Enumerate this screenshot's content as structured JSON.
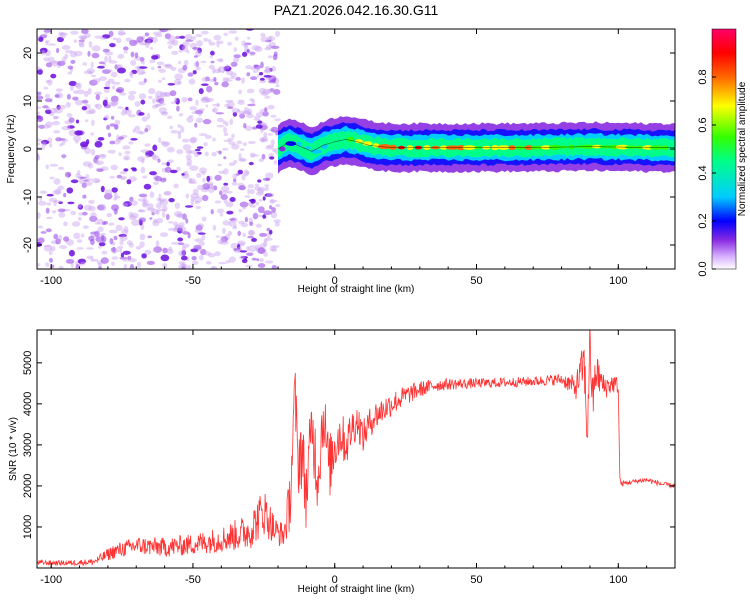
{
  "title": "PAZ1.2026.042.16.30.G11",
  "chart_data": [
    {
      "type": "heatmap",
      "name": "spectrogram",
      "xlabel": "Height of straight line (km)",
      "ylabel": "Frequency (Hz)",
      "xlim": [
        -105,
        120
      ],
      "ylim": [
        -25,
        25
      ],
      "xticks": [
        -100,
        -50,
        0,
        50,
        100
      ],
      "yticks": [
        -20,
        -10,
        0,
        10,
        20
      ],
      "noise_region_x": [
        -105,
        -20
      ],
      "signal_track": {
        "x": [
          -20,
          -16,
          -12,
          -8,
          -4,
          0,
          4,
          8,
          12,
          16,
          20,
          30,
          40,
          50,
          60,
          70,
          80,
          90,
          100,
          110,
          120
        ],
        "y": [
          0,
          1.5,
          0.5,
          -0.5,
          0.8,
          1.5,
          2,
          1.5,
          0.8,
          0.5,
          0.3,
          0.3,
          0.3,
          0.3,
          0.3,
          0.3,
          0.4,
          0.5,
          0.4,
          0.3,
          0.3
        ],
        "amplitude": [
          0.3,
          0.4,
          0.5,
          0.5,
          0.55,
          0.6,
          0.75,
          0.8,
          0.85,
          0.9,
          0.95,
          0.95,
          0.92,
          0.9,
          0.88,
          0.85,
          0.8,
          0.75,
          0.8,
          0.7,
          0.65
        ]
      },
      "colorbar": {
        "label": "Normalized spectral amplitude",
        "range": [
          0,
          1
        ],
        "ticks": [
          0.0,
          0.2,
          0.4,
          0.6,
          0.8
        ]
      }
    },
    {
      "type": "line",
      "name": "snr",
      "xlabel": "Height of straight line (km)",
      "ylabel": "SNR (10 * v/v)",
      "xlim": [
        -105,
        120
      ],
      "ylim": [
        0,
        5800
      ],
      "xticks": [
        -100,
        -50,
        0,
        50,
        100
      ],
      "yticks": [
        1000,
        2000,
        3000,
        4000,
        5000
      ],
      "color": "#ff3333",
      "series": [
        {
          "name": "SNR",
          "x": [
            -105,
            -95,
            -85,
            -78,
            -70,
            -60,
            -50,
            -40,
            -30,
            -25,
            -21,
            -18,
            -16,
            -15,
            -14,
            -13,
            -12,
            -10,
            -8,
            -6,
            -4,
            -2,
            0,
            2,
            4,
            6,
            8,
            10,
            12,
            14,
            16,
            20,
            25,
            30,
            35,
            40,
            50,
            60,
            70,
            80,
            85,
            88,
            89,
            90,
            91,
            92,
            95,
            98,
            100,
            100.5,
            101,
            105,
            110,
            115,
            120
          ],
          "y": [
            130,
            120,
            150,
            400,
            550,
            500,
            580,
            700,
            900,
            1400,
            900,
            800,
            1500,
            2800,
            4300,
            2500,
            3000,
            1800,
            3500,
            2200,
            3800,
            2400,
            3000,
            3300,
            3000,
            3400,
            3600,
            3200,
            3500,
            3700,
            3800,
            4000,
            4200,
            4350,
            4450,
            4480,
            4500,
            4520,
            4550,
            4600,
            4400,
            5000,
            3200,
            5500,
            4000,
            4800,
            4400,
            4500,
            4450,
            2200,
            2050,
            2100,
            2150,
            2050,
            2000
          ],
          "noise_amp": [
            60,
            60,
            80,
            180,
            220,
            240,
            260,
            320,
            450,
            600,
            350,
            300,
            700,
            1000,
            700,
            900,
            1000,
            900,
            900,
            900,
            800,
            800,
            700,
            600,
            550,
            500,
            450,
            400,
            380,
            360,
            340,
            300,
            250,
            200,
            160,
            140,
            120,
            120,
            120,
            140,
            300,
            600,
            700,
            700,
            600,
            500,
            300,
            250,
            200,
            80,
            60,
            60,
            60,
            60,
            60
          ]
        }
      ]
    }
  ]
}
